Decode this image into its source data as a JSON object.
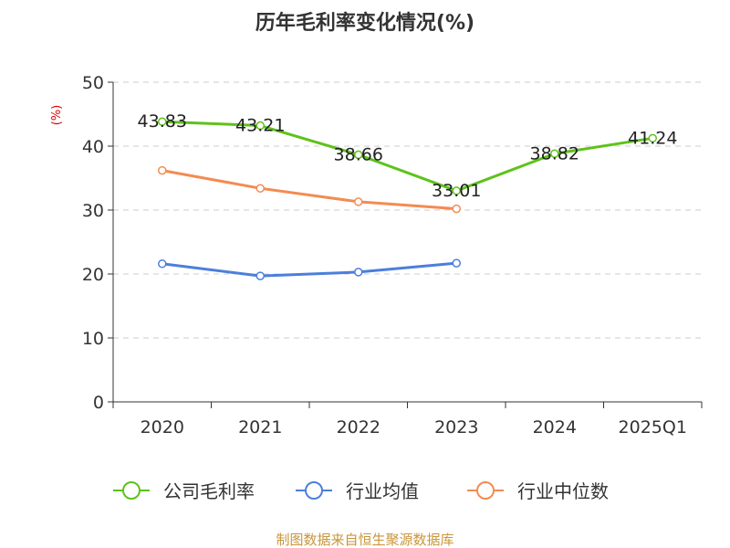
{
  "chart_data": {
    "type": "line",
    "title": "历年毛利率变化情况(%)",
    "ylabel": "(%)",
    "xlabel": "",
    "categories": [
      "2020",
      "2021",
      "2022",
      "2023",
      "2024",
      "2025Q1"
    ],
    "ylim": [
      0,
      50
    ],
    "yticks": [
      "0",
      "10",
      "20",
      "30",
      "40",
      "50"
    ],
    "grid": true,
    "legend_position": "bottom",
    "series": [
      {
        "name": "公司毛利率",
        "color": "#5ec21a",
        "values": [
          43.83,
          43.21,
          38.66,
          33.01,
          38.82,
          41.24
        ],
        "labels": [
          "43.83",
          "43.21",
          "38.66",
          "33.01",
          "38.82",
          "41.24"
        ]
      },
      {
        "name": "行业均值",
        "color": "#4c7fdc",
        "values": [
          21.6,
          19.7,
          20.3,
          21.7,
          null,
          null
        ]
      },
      {
        "name": "行业中位数",
        "color": "#f38b52",
        "values": [
          36.2,
          33.4,
          31.3,
          30.2,
          null,
          null
        ]
      }
    ]
  },
  "source": {
    "text": "制图数据来自恒生聚源数据库",
    "color": "#c8963c"
  },
  "axis_color": "#333333",
  "grid_color": "#cccccc"
}
